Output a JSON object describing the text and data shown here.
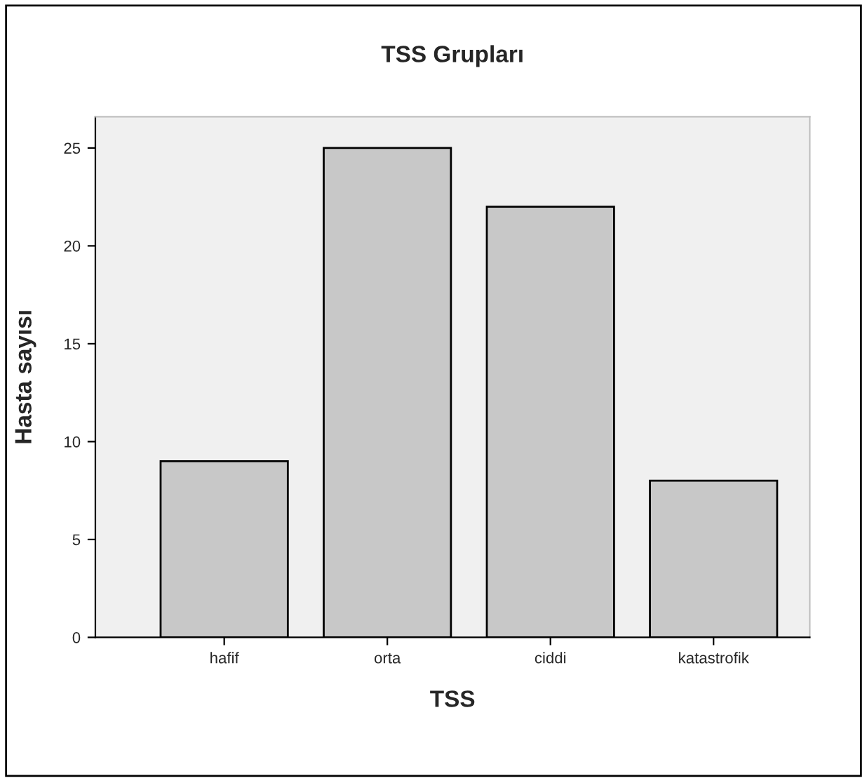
{
  "chart_data": {
    "type": "bar",
    "title": "TSS Grupları",
    "xlabel": "TSS",
    "ylabel": "Hasta sayısı",
    "categories": [
      "hafif",
      "orta",
      "ciddi",
      "katastrofik"
    ],
    "values": [
      9,
      25,
      22,
      8
    ],
    "color": "#c8c8c8",
    "ylim": [
      0,
      26.6
    ],
    "yticks": [
      0,
      5,
      10,
      15,
      20,
      25
    ],
    "grid": false
  }
}
